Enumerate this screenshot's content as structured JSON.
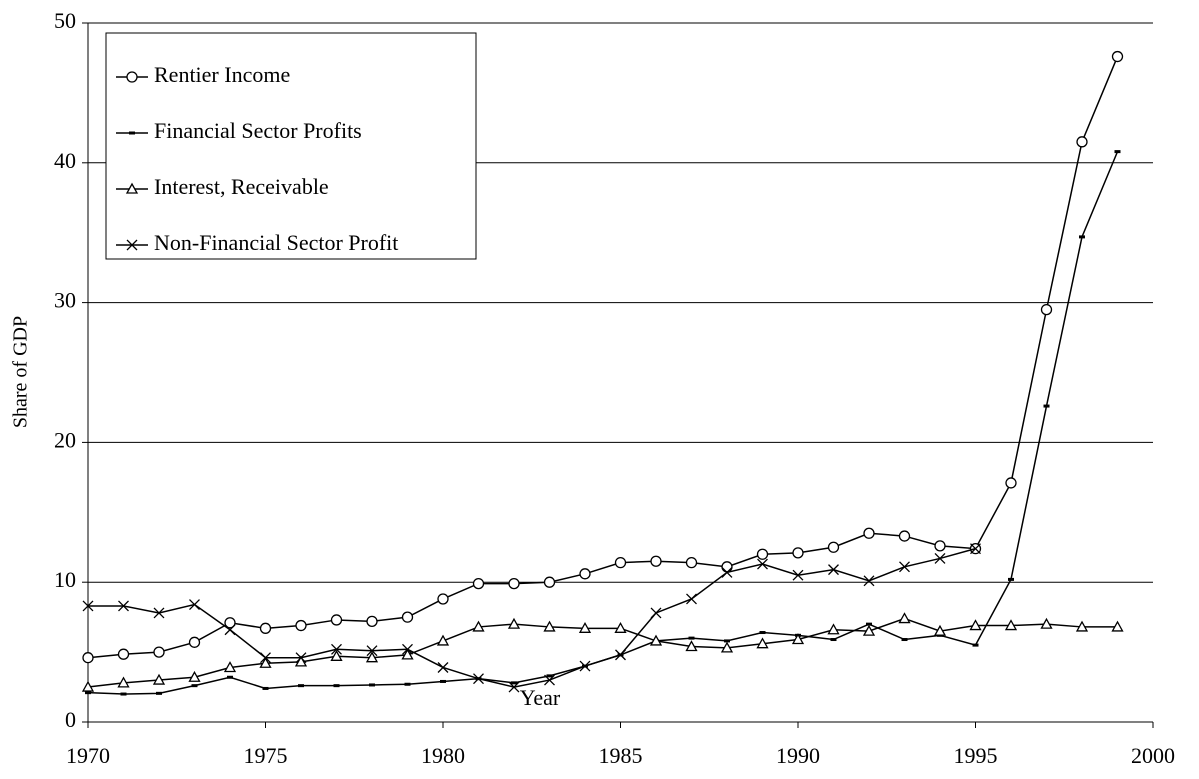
{
  "chart_data": {
    "type": "line",
    "x_label": "Year",
    "y_label": "Share of GDP",
    "x": [
      1970,
      1971,
      1972,
      1973,
      1974,
      1975,
      1976,
      1977,
      1978,
      1979,
      1980,
      1981,
      1982,
      1983,
      1984,
      1985,
      1986,
      1987,
      1988,
      1989,
      1990,
      1991,
      1992,
      1993,
      1994,
      1995,
      1996,
      1997,
      1998,
      1999
    ],
    "series": [
      {
        "name": "Rentier Income",
        "color": "#000000",
        "marker": "circle",
        "values": [
          4.6,
          4.85,
          5.0,
          5.7,
          7.1,
          6.7,
          6.9,
          7.3,
          7.2,
          7.5,
          8.8,
          9.9,
          9.9,
          10.0,
          10.6,
          11.4,
          11.5,
          11.4,
          11.1,
          12.0,
          12.1,
          12.5,
          13.5,
          13.3,
          12.6,
          12.4,
          17.1,
          29.5,
          41.5,
          47.6
        ]
      },
      {
        "name": "Financial Sector Profits",
        "color": "#000000",
        "marker": "dash",
        "values": [
          2.1,
          2.0,
          2.05,
          2.6,
          3.2,
          2.4,
          2.6,
          2.6,
          2.65,
          2.7,
          2.9,
          3.1,
          2.8,
          3.3,
          4.0,
          4.8,
          5.8,
          6.0,
          5.8,
          6.4,
          6.2,
          5.9,
          7.0,
          5.9,
          6.2,
          5.5,
          10.2,
          22.6,
          34.7,
          40.8
        ]
      },
      {
        "name": "Interest, Receivable",
        "color": "#000000",
        "marker": "triangle",
        "values": [
          2.5,
          2.8,
          3.0,
          3.2,
          3.9,
          4.2,
          4.3,
          4.7,
          4.6,
          4.8,
          5.8,
          6.8,
          7.0,
          6.8,
          6.7,
          6.7,
          5.8,
          5.4,
          5.3,
          5.6,
          5.9,
          6.6,
          6.5,
          7.4,
          6.5,
          6.9,
          6.9,
          7.0,
          6.8,
          6.8
        ]
      },
      {
        "name": "Non-Financial Sector Profit",
        "color": "#000000",
        "marker": "cross",
        "values": [
          8.3,
          8.3,
          7.8,
          8.4,
          6.6,
          4.6,
          4.6,
          5.2,
          5.1,
          5.2,
          3.9,
          3.1,
          2.5,
          3.0,
          4.0,
          4.8,
          7.8,
          8.8,
          10.7,
          11.3,
          10.5,
          10.9,
          10.1,
          11.1,
          11.7,
          12.4,
          null,
          null,
          null,
          null
        ]
      }
    ],
    "xlim": [
      1970,
      2000
    ],
    "xticks": [
      1970,
      1975,
      1980,
      1985,
      1990,
      1995,
      2000
    ],
    "ylim": [
      0,
      50
    ],
    "yticks": [
      0,
      10,
      20,
      30,
      40,
      50
    ],
    "grid": true,
    "legend": "upper left"
  }
}
